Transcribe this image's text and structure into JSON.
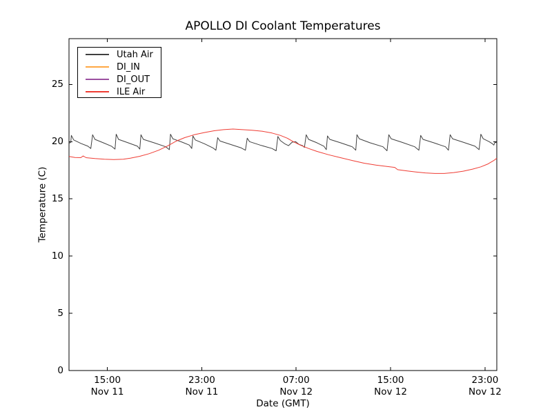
{
  "figure": {
    "background": "#ffffff",
    "axis_color": "#000000"
  },
  "chart_data": {
    "type": "line",
    "title": "APOLLO DI Coolant Temperatures",
    "xlabel": "Date (GMT)",
    "ylabel": "Temperature (C)",
    "grid": false,
    "legend_position": "upper-left",
    "ylim": [
      0,
      29
    ],
    "y_ticks": [
      0,
      5,
      10,
      15,
      20,
      25
    ],
    "x_hours_span": [
      0,
      36.25
    ],
    "x_note": "t = hours along axis; t=0 at left edge (approx Nov 11 11:45 GMT)",
    "x_ticks": [
      {
        "t": 3.25,
        "time": "15:00",
        "date": "Nov 11"
      },
      {
        "t": 11.25,
        "time": "23:00",
        "date": "Nov 11"
      },
      {
        "t": 19.25,
        "time": "07:00",
        "date": "Nov 12"
      },
      {
        "t": 27.25,
        "time": "15:00",
        "date": "Nov 12"
      },
      {
        "t": 35.25,
        "time": "23:00",
        "date": "Nov 12"
      }
    ],
    "series": [
      {
        "name": "Utah Air",
        "color": "#3f3f3f",
        "visible": true,
        "points": [
          [
            0.0,
            19.85
          ],
          [
            0.15,
            19.95
          ],
          [
            0.2,
            20.55
          ],
          [
            0.4,
            20.15
          ],
          [
            1.0,
            19.85
          ],
          [
            1.6,
            19.6
          ],
          [
            1.85,
            19.4
          ],
          [
            2.0,
            20.6
          ],
          [
            2.2,
            20.2
          ],
          [
            2.9,
            19.9
          ],
          [
            3.6,
            19.6
          ],
          [
            3.9,
            19.35
          ],
          [
            4.0,
            20.65
          ],
          [
            4.2,
            20.2
          ],
          [
            5.0,
            19.9
          ],
          [
            5.8,
            19.6
          ],
          [
            6.0,
            19.35
          ],
          [
            6.1,
            20.6
          ],
          [
            6.3,
            20.2
          ],
          [
            7.2,
            19.9
          ],
          [
            8.2,
            19.55
          ],
          [
            8.5,
            19.3
          ],
          [
            8.6,
            20.65
          ],
          [
            8.8,
            20.25
          ],
          [
            9.6,
            19.95
          ],
          [
            10.2,
            19.7
          ],
          [
            10.4,
            19.4
          ],
          [
            10.5,
            20.5
          ],
          [
            10.7,
            20.15
          ],
          [
            11.5,
            19.8
          ],
          [
            12.2,
            19.45
          ],
          [
            12.45,
            19.25
          ],
          [
            12.6,
            20.35
          ],
          [
            12.8,
            20.05
          ],
          [
            13.7,
            19.75
          ],
          [
            14.6,
            19.45
          ],
          [
            14.95,
            19.25
          ],
          [
            15.1,
            20.3
          ],
          [
            15.3,
            20.0
          ],
          [
            16.2,
            19.7
          ],
          [
            17.2,
            19.4
          ],
          [
            17.55,
            19.2
          ],
          [
            17.7,
            20.45
          ],
          [
            17.9,
            20.1
          ],
          [
            18.3,
            19.8
          ],
          [
            18.6,
            19.65
          ],
          [
            18.9,
            19.95
          ],
          [
            19.2,
            20.0
          ],
          [
            19.5,
            19.75
          ],
          [
            19.8,
            19.65
          ],
          [
            19.95,
            19.5
          ],
          [
            20.1,
            20.6
          ],
          [
            20.3,
            20.2
          ],
          [
            21.0,
            19.9
          ],
          [
            21.6,
            19.6
          ],
          [
            21.8,
            19.3
          ],
          [
            21.9,
            20.5
          ],
          [
            22.1,
            20.2
          ],
          [
            23.0,
            19.9
          ],
          [
            24.0,
            19.55
          ],
          [
            24.3,
            19.25
          ],
          [
            24.4,
            20.6
          ],
          [
            24.6,
            20.25
          ],
          [
            25.5,
            19.9
          ],
          [
            26.6,
            19.55
          ],
          [
            26.95,
            19.2
          ],
          [
            27.1,
            20.6
          ],
          [
            27.3,
            20.25
          ],
          [
            28.2,
            19.95
          ],
          [
            29.3,
            19.55
          ],
          [
            29.65,
            19.25
          ],
          [
            29.8,
            20.55
          ],
          [
            30.0,
            20.2
          ],
          [
            30.9,
            19.9
          ],
          [
            31.9,
            19.55
          ],
          [
            32.15,
            19.25
          ],
          [
            32.3,
            20.6
          ],
          [
            32.5,
            20.25
          ],
          [
            33.4,
            19.95
          ],
          [
            34.4,
            19.6
          ],
          [
            34.75,
            19.3
          ],
          [
            34.9,
            20.65
          ],
          [
            35.1,
            20.25
          ],
          [
            35.6,
            20.0
          ],
          [
            35.9,
            19.8
          ],
          [
            36.0,
            19.7
          ],
          [
            36.1,
            19.95
          ],
          [
            36.25,
            19.9
          ]
        ]
      },
      {
        "name": "DI_IN",
        "color": "#ffa742",
        "visible": false,
        "points": []
      },
      {
        "name": "DI_OUT",
        "color": "#9b4fa0",
        "visible": false,
        "points": []
      },
      {
        "name": "ILE Air",
        "color": "#ef3b32",
        "visible": true,
        "points": [
          [
            0.0,
            18.7
          ],
          [
            0.5,
            18.62
          ],
          [
            1.0,
            18.6
          ],
          [
            1.2,
            18.75
          ],
          [
            1.45,
            18.6
          ],
          [
            2.2,
            18.52
          ],
          [
            3.0,
            18.47
          ],
          [
            3.8,
            18.44
          ],
          [
            4.6,
            18.47
          ],
          [
            5.2,
            18.55
          ],
          [
            6.0,
            18.72
          ],
          [
            6.8,
            18.95
          ],
          [
            7.6,
            19.25
          ],
          [
            8.4,
            19.65
          ],
          [
            9.1,
            20.05
          ],
          [
            9.8,
            20.35
          ],
          [
            10.6,
            20.6
          ],
          [
            11.5,
            20.8
          ],
          [
            12.3,
            20.95
          ],
          [
            13.1,
            21.05
          ],
          [
            13.9,
            21.1
          ],
          [
            14.7,
            21.05
          ],
          [
            15.5,
            21.0
          ],
          [
            16.4,
            20.9
          ],
          [
            17.2,
            20.75
          ],
          [
            17.9,
            20.55
          ],
          [
            18.5,
            20.3
          ],
          [
            19.0,
            20.0
          ],
          [
            19.6,
            19.7
          ],
          [
            20.3,
            19.4
          ],
          [
            21.0,
            19.15
          ],
          [
            22.0,
            18.85
          ],
          [
            23.0,
            18.6
          ],
          [
            24.0,
            18.35
          ],
          [
            25.0,
            18.12
          ],
          [
            26.0,
            17.95
          ],
          [
            27.0,
            17.82
          ],
          [
            27.6,
            17.75
          ],
          [
            27.85,
            17.55
          ],
          [
            28.6,
            17.45
          ],
          [
            29.4,
            17.35
          ],
          [
            30.2,
            17.27
          ],
          [
            31.0,
            17.22
          ],
          [
            31.8,
            17.22
          ],
          [
            32.6,
            17.3
          ],
          [
            33.4,
            17.42
          ],
          [
            34.2,
            17.6
          ],
          [
            34.9,
            17.8
          ],
          [
            35.5,
            18.05
          ],
          [
            36.0,
            18.35
          ],
          [
            36.25,
            18.55
          ]
        ]
      }
    ]
  }
}
